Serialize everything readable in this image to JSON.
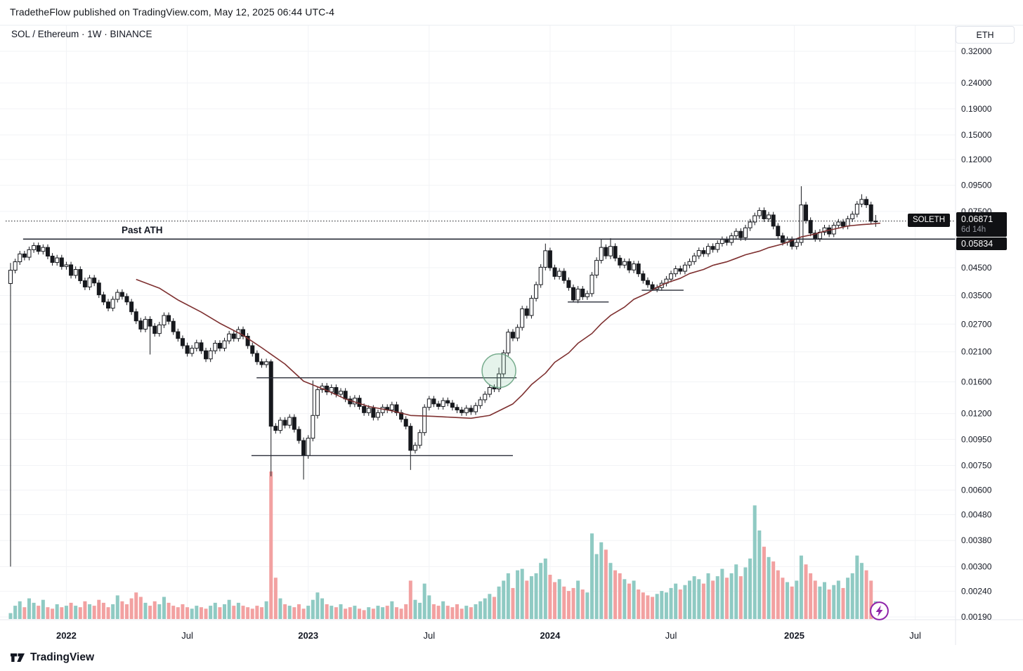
{
  "header": {
    "attribution": "TradetheFlow published on TradingView.com, May 12, 2025 06:44 UTC-4"
  },
  "toolbar": {
    "symbol_title": "SOL / Ethereum · 1W · BINANCE",
    "currency_button": "ETH"
  },
  "labels": {
    "symbol_tag": "SOLETH",
    "current_price": "0.06871",
    "countdown": "6d 14h",
    "ath_price": "0.05834",
    "past_ath_text": "Past ATH"
  },
  "footer": {
    "brand": "TradingView"
  },
  "chart_data": {
    "type": "candlestick",
    "symbol": "SOL/ETH",
    "exchange": "BINANCE",
    "timeframe": "1W",
    "y_axis": {
      "scale": "log",
      "unit": "ETH",
      "range": [
        0.0019,
        0.32
      ]
    },
    "current_price": 0.06871,
    "past_ath": {
      "price": 0.05834,
      "from_week": 2.7
    },
    "first_open": 0.039,
    "closes": [
      0.044,
      0.0475,
      0.051,
      0.0495,
      0.053,
      0.055,
      0.0522,
      0.0541,
      0.05,
      0.0472,
      0.0492,
      0.0455,
      0.0462,
      0.042,
      0.0443,
      0.04,
      0.0378,
      0.041,
      0.0392,
      0.0352,
      0.033,
      0.0312,
      0.0338,
      0.036,
      0.0347,
      0.033,
      0.0302,
      0.0278,
      0.0258,
      0.0282,
      0.0265,
      0.0248,
      0.0268,
      0.0292,
      0.0277,
      0.0252,
      0.0237,
      0.0222,
      0.0207,
      0.0217,
      0.0228,
      0.0212,
      0.0197,
      0.0212,
      0.0227,
      0.0217,
      0.0232,
      0.0247,
      0.0237,
      0.0257,
      0.0242,
      0.0222,
      0.0207,
      0.0192,
      0.0187,
      0.0192,
      0.0107,
      0.0103,
      0.0113,
      0.0108,
      0.0116,
      0.0104,
      0.0094,
      0.0082,
      0.0096,
      0.0118,
      0.0149,
      0.0154,
      0.0146,
      0.0152,
      0.0143,
      0.0147,
      0.0137,
      0.0131,
      0.0138,
      0.0128,
      0.0121,
      0.0126,
      0.0116,
      0.0121,
      0.0127,
      0.0124,
      0.013,
      0.0121,
      0.0114,
      0.0107,
      0.0086,
      0.009,
      0.0101,
      0.0127,
      0.0137,
      0.0131,
      0.0128,
      0.0135,
      0.0132,
      0.0127,
      0.0124,
      0.0121,
      0.0126,
      0.0122,
      0.0129,
      0.0136,
      0.0143,
      0.0152,
      0.015,
      0.0172,
      0.0208,
      0.0251,
      0.0238,
      0.0262,
      0.031,
      0.0292,
      0.0341,
      0.0386,
      0.0452,
      0.0525,
      0.045,
      0.0416,
      0.0436,
      0.0401,
      0.0376,
      0.0336,
      0.0371,
      0.0346,
      0.0356,
      0.0421,
      0.0481,
      0.0541,
      0.0501,
      0.0546,
      0.0491,
      0.0461,
      0.0476,
      0.0441,
      0.0466,
      0.0426,
      0.0401,
      0.0386,
      0.0371,
      0.0376,
      0.0391,
      0.0406,
      0.0426,
      0.0446,
      0.0436,
      0.0461,
      0.0476,
      0.0501,
      0.0526,
      0.0511,
      0.0546,
      0.0531,
      0.0561,
      0.0581,
      0.0566,
      0.0601,
      0.0626,
      0.0591,
      0.0646,
      0.0681,
      0.0721,
      0.0756,
      0.0701,
      0.0726,
      0.0656,
      0.0601,
      0.0566,
      0.0581,
      0.0546,
      0.0566,
      0.0795,
      0.0691,
      0.0616,
      0.0586,
      0.0621,
      0.0646,
      0.0611,
      0.0661,
      0.0681,
      0.0656,
      0.0701,
      0.0731,
      0.0801,
      0.0836,
      0.0796,
      0.0686,
      0.0687
    ],
    "volumes": [
      4,
      9,
      12,
      8,
      14,
      11,
      9,
      13,
      8,
      7,
      10,
      8,
      9,
      11,
      9,
      8,
      12,
      10,
      9,
      13,
      11,
      8,
      10,
      16,
      12,
      10,
      14,
      18,
      15,
      11,
      9,
      12,
      10,
      15,
      11,
      9,
      8,
      10,
      8,
      7,
      9,
      8,
      7,
      9,
      11,
      8,
      10,
      13,
      9,
      11,
      9,
      8,
      7,
      9,
      8,
      12,
      100,
      28,
      14,
      10,
      9,
      8,
      10,
      7,
      9,
      13,
      18,
      14,
      10,
      9,
      8,
      10,
      7,
      8,
      9,
      7,
      6,
      8,
      7,
      9,
      8,
      9,
      12,
      8,
      7,
      10,
      26,
      13,
      11,
      24,
      16,
      10,
      9,
      12,
      9,
      8,
      10,
      7,
      9,
      8,
      10,
      12,
      14,
      17,
      15,
      22,
      26,
      31,
      21,
      33,
      34,
      26,
      29,
      31,
      38,
      41,
      30,
      25,
      27,
      22,
      19,
      21,
      26,
      20,
      18,
      58,
      44,
      52,
      47,
      38,
      33,
      31,
      27,
      24,
      26,
      20,
      18,
      16,
      15,
      17,
      19,
      18,
      21,
      24,
      20,
      23,
      26,
      29,
      27,
      24,
      31,
      26,
      29,
      34,
      28,
      31,
      37,
      29,
      35,
      41,
      77,
      60,
      49,
      42,
      39,
      33,
      28,
      25,
      22,
      26,
      43,
      37,
      31,
      26,
      22,
      25,
      20,
      23,
      26,
      21,
      28,
      31,
      43,
      38,
      33,
      26,
      12
    ],
    "wick_overrides": {
      "0": {
        "h": 0.047,
        "l": 0.003
      },
      "30": {
        "l": 0.0205
      },
      "56": {
        "h": 0.0196,
        "l": 0.0068
      },
      "63": {
        "l": 0.0066
      },
      "65": {
        "h": 0.0162
      },
      "86": {
        "l": 0.0072
      },
      "105": {
        "h": 0.0182
      },
      "115": {
        "h": 0.056
      },
      "121": {
        "l": 0.033
      },
      "127": {
        "h": 0.0582
      },
      "129": {
        "h": 0.0588
      },
      "138": {
        "l": 0.0365
      },
      "170": {
        "h": 0.0942,
        "l": 0.055
      },
      "183": {
        "h": 0.0876
      },
      "186": {
        "h": 0.0726,
        "l": 0.0652
      }
    },
    "ma_points": [
      [
        27,
        0.0405
      ],
      [
        32,
        0.0374
      ],
      [
        36,
        0.0336
      ],
      [
        41,
        0.0301
      ],
      [
        45,
        0.0272
      ],
      [
        50,
        0.0244
      ],
      [
        54,
        0.0218
      ],
      [
        59,
        0.0188
      ],
      [
        63,
        0.0161
      ],
      [
        68,
        0.0148
      ],
      [
        72,
        0.0137
      ],
      [
        77,
        0.0128
      ],
      [
        82,
        0.0123
      ],
      [
        86,
        0.0118
      ],
      [
        91,
        0.0117
      ],
      [
        95,
        0.0116
      ],
      [
        99,
        0.0115
      ],
      [
        103,
        0.0118
      ],
      [
        105,
        0.0123
      ],
      [
        108,
        0.0131
      ],
      [
        110,
        0.0142
      ],
      [
        112,
        0.0156
      ],
      [
        115,
        0.0173
      ],
      [
        117,
        0.0191
      ],
      [
        120,
        0.0208
      ],
      [
        122,
        0.0227
      ],
      [
        125,
        0.0248
      ],
      [
        127,
        0.0271
      ],
      [
        129,
        0.0292
      ],
      [
        132,
        0.0315
      ],
      [
        134,
        0.0338
      ],
      [
        137,
        0.0358
      ],
      [
        139,
        0.0377
      ],
      [
        141,
        0.0392
      ],
      [
        144,
        0.0409
      ],
      [
        146,
        0.0427
      ],
      [
        149,
        0.0443
      ],
      [
        151,
        0.046
      ],
      [
        154,
        0.0475
      ],
      [
        156,
        0.049
      ],
      [
        158,
        0.0506
      ],
      [
        161,
        0.0523
      ],
      [
        163,
        0.054
      ],
      [
        166,
        0.0558
      ],
      [
        168,
        0.0576
      ],
      [
        170,
        0.0595
      ],
      [
        173,
        0.0611
      ],
      [
        175,
        0.0627
      ],
      [
        178,
        0.0644
      ],
      [
        180,
        0.0657
      ],
      [
        183,
        0.0665
      ],
      [
        185,
        0.0669
      ],
      [
        187,
        0.0674
      ]
    ],
    "levels": [
      {
        "price": 0.0166,
        "from_week": 52.9,
        "to_week": 108.8
      },
      {
        "price": 0.0082,
        "from_week": 51.8,
        "to_week": 108.0
      },
      {
        "price": 0.033,
        "from_week": 119.8,
        "to_week": 128.6
      },
      {
        "price": 0.0367,
        "from_week": 135.7,
        "to_week": 144.7
      }
    ],
    "highlight_circle": {
      "week": 105,
      "price": 0.0177,
      "radius_px": 24
    },
    "y_ticks": [
      {
        "value": 0.32,
        "label": "0.32000"
      },
      {
        "value": 0.24,
        "label": "0.24000"
      },
      {
        "value": 0.19,
        "label": "0.19000"
      },
      {
        "value": 0.15,
        "label": "0.15000"
      },
      {
        "value": 0.12,
        "label": "0.12000"
      },
      {
        "value": 0.095,
        "label": "0.09500"
      },
      {
        "value": 0.075,
        "label": "0.07500"
      },
      {
        "value": 0.045,
        "label": "0.04500"
      },
      {
        "value": 0.035,
        "label": "0.03500"
      },
      {
        "value": 0.027,
        "label": "0.02700"
      },
      {
        "value": 0.021,
        "label": "0.02100"
      },
      {
        "value": 0.016,
        "label": "0.01600"
      },
      {
        "value": 0.012,
        "label": "0.01200"
      },
      {
        "value": 0.0095,
        "label": "0.00950"
      },
      {
        "value": 0.0075,
        "label": "0.00750"
      },
      {
        "value": 0.006,
        "label": "0.00600"
      },
      {
        "value": 0.0048,
        "label": "0.00480"
      },
      {
        "value": 0.0038,
        "label": "0.00380"
      },
      {
        "value": 0.003,
        "label": "0.00300"
      },
      {
        "value": 0.0024,
        "label": "0.00240"
      },
      {
        "value": 0.0019,
        "label": "0.00190"
      }
    ],
    "x_ticks": [
      {
        "label": "2022",
        "week": 12,
        "bold": true
      },
      {
        "label": "Jul",
        "week": 38,
        "bold": false
      },
      {
        "label": "2023",
        "week": 64,
        "bold": true
      },
      {
        "label": "Jul",
        "week": 90,
        "bold": false
      },
      {
        "label": "2024",
        "week": 116,
        "bold": true
      },
      {
        "label": "Jul",
        "week": 142,
        "bold": false
      },
      {
        "label": "2025",
        "week": 168.5,
        "bold": true
      },
      {
        "label": "Jul",
        "week": 194.5,
        "bold": false
      }
    ],
    "colors": {
      "candle": "#16181d",
      "vol_up": "#8fcac3",
      "vol_down": "#f2a1a1",
      "ma": "#7e3030",
      "drawing": "#2a2e39",
      "grid": "#f2f3f6",
      "circle_fill": "rgba(137,199,163,0.22)",
      "circle_stroke": "rgba(96,158,122,0.85)",
      "label_bg": "#101114",
      "countdown_text": "#9598a1",
      "badge_purple": "#8e24aa"
    }
  }
}
